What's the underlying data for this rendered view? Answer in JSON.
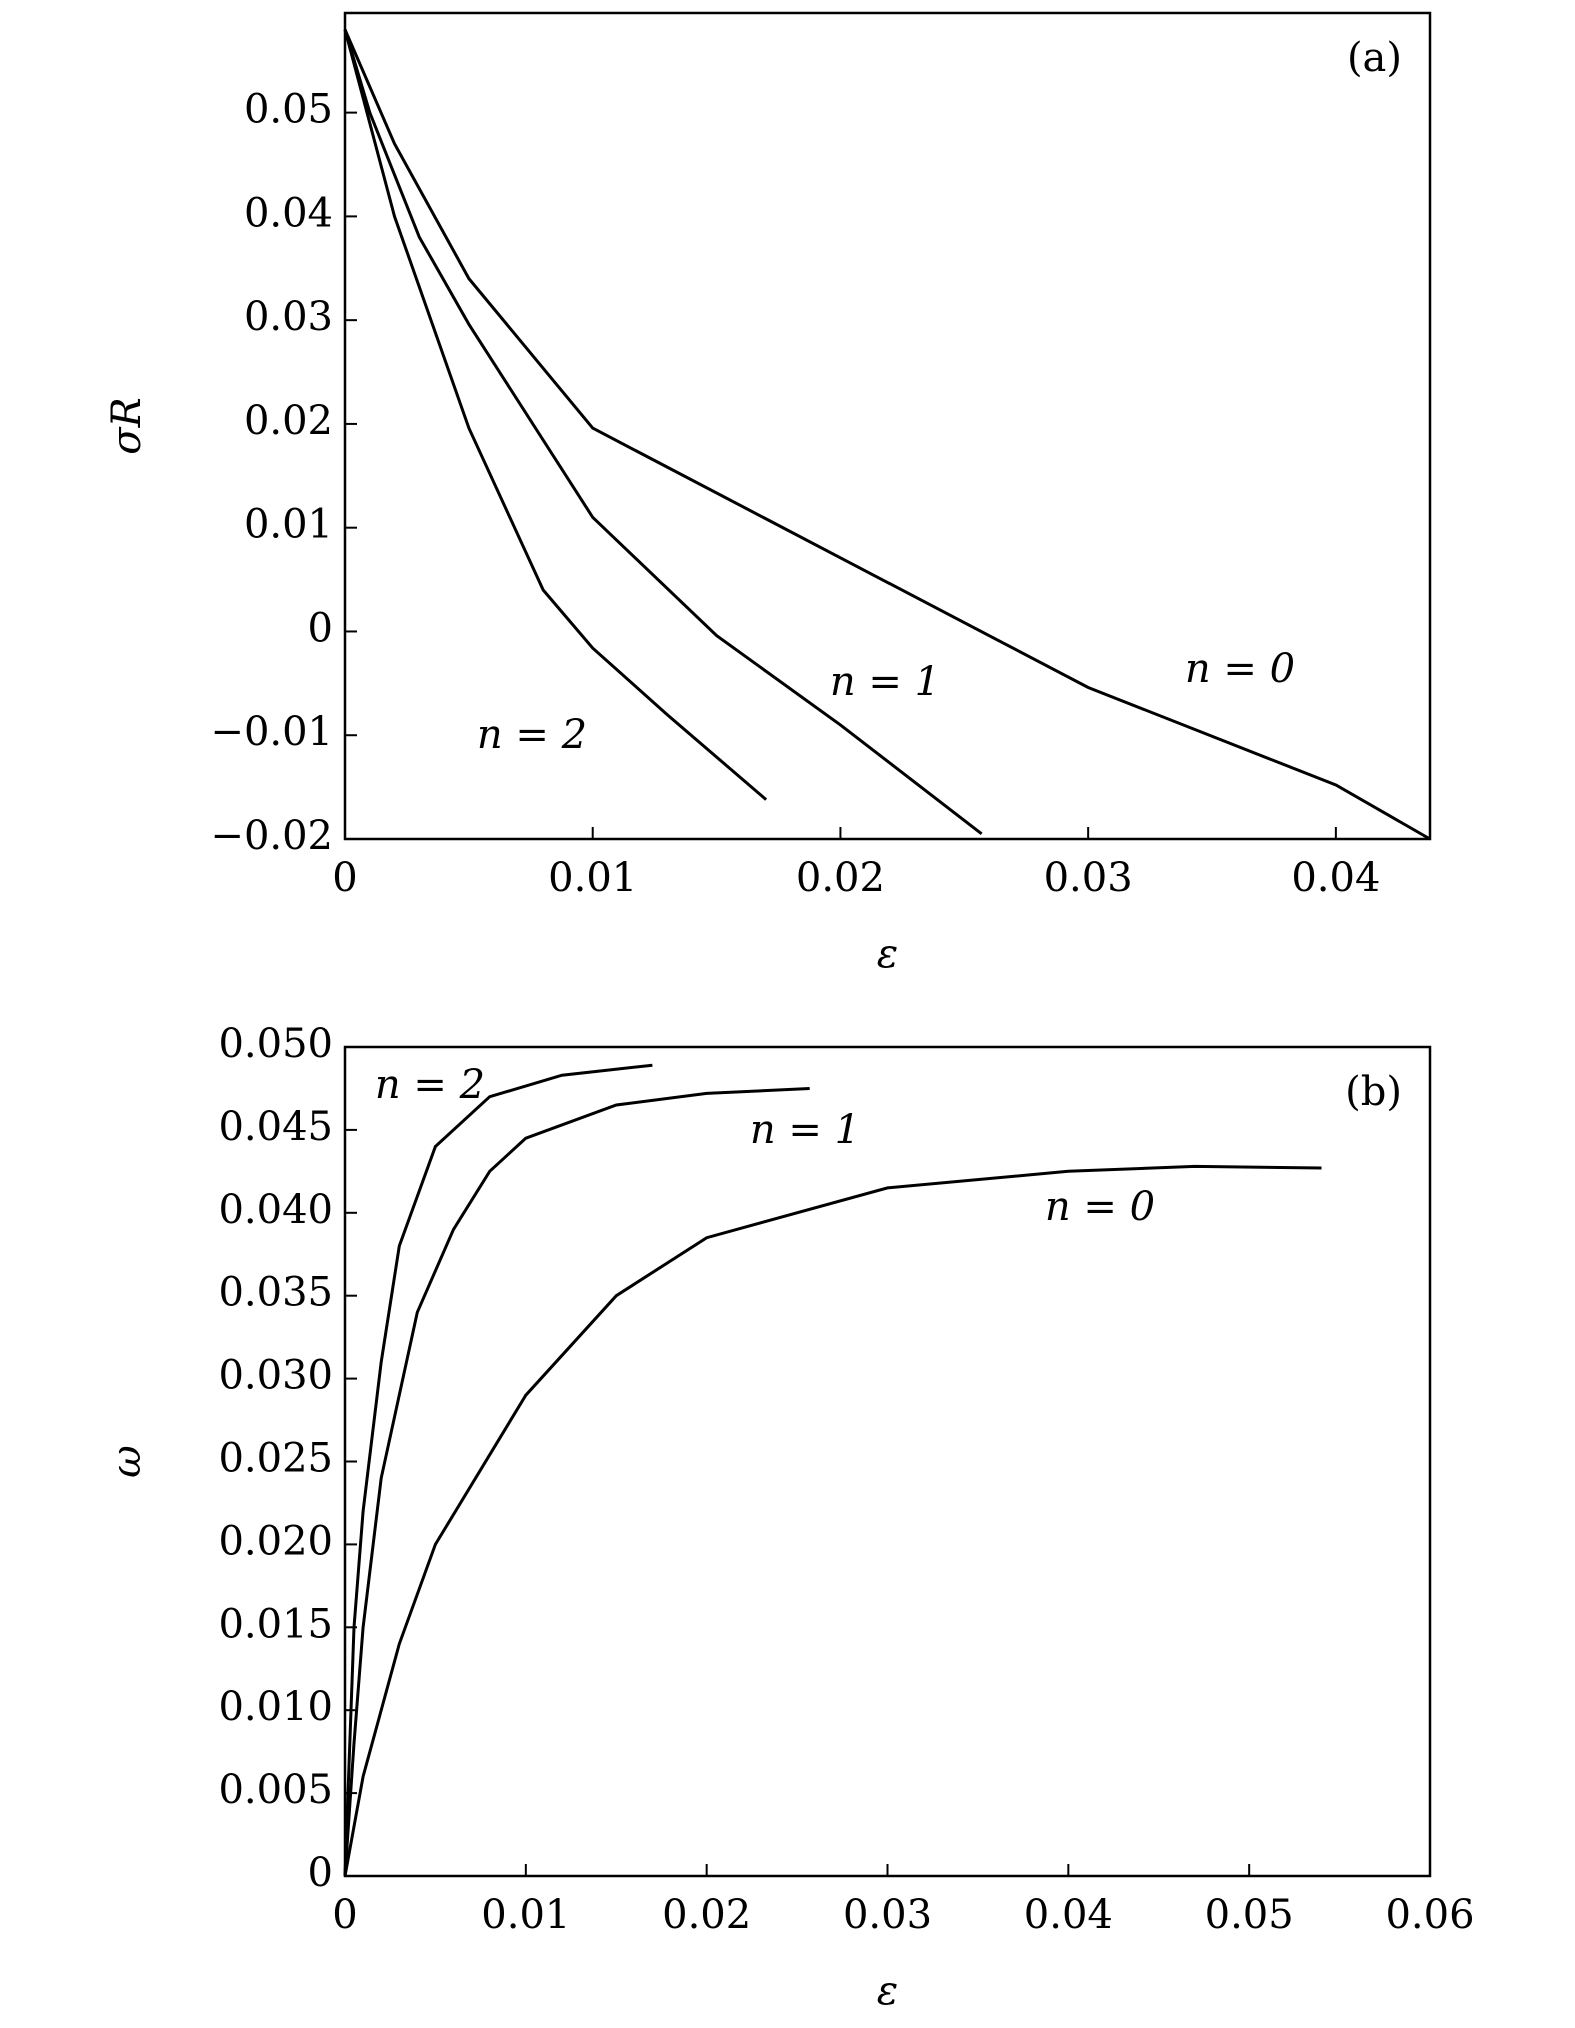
{
  "chart_data": [
    {
      "type": "line",
      "panel_label": "(a)",
      "x_label": "ε",
      "y_label": "σR",
      "xlim": [
        0,
        0.0438
      ],
      "ylim": [
        -0.02,
        0.0596
      ],
      "xticks": [
        0,
        0.01,
        0.02,
        0.03,
        0.04
      ],
      "yticks": [
        {
          "value": -0.02,
          "label": "−0.02"
        },
        {
          "value": -0.01,
          "label": "−0.01"
        },
        0,
        0.01,
        0.02,
        0.03,
        0.04,
        0.05
      ],
      "series": [
        {
          "name": "n = 0",
          "color": "#000000",
          "x": [
            0,
            0.002,
            0.005,
            0.01,
            0.02,
            0.03,
            0.04,
            0.0438
          ],
          "values": [
            0.058,
            0.047,
            0.034,
            0.0196,
            0.0071,
            -0.0054,
            -0.0148,
            -0.02
          ]
        },
        {
          "name": "n = 1",
          "color": "#000000",
          "x": [
            0,
            0.001,
            0.003,
            0.005,
            0.01,
            0.015,
            0.02,
            0.0257
          ],
          "values": [
            0.058,
            0.05,
            0.038,
            0.0296,
            0.011,
            -0.0004,
            -0.009,
            -0.0195
          ]
        },
        {
          "name": "n = 2",
          "color": "#000000",
          "x": [
            0,
            0.002,
            0.005,
            0.008,
            0.01,
            0.013,
            0.017
          ],
          "values": [
            0.058,
            0.04,
            0.0196,
            0.004,
            -0.0016,
            -0.008,
            -0.0162
          ]
        }
      ]
    },
    {
      "type": "line",
      "panel_label": "(b)",
      "x_label": "ε",
      "y_label": "ω",
      "xlim": [
        0,
        0.06
      ],
      "ylim": [
        0,
        0.05
      ],
      "xticks": [
        0,
        0.01,
        0.02,
        0.03,
        0.04,
        0.05,
        0.06
      ],
      "yticks": [
        0,
        0.005,
        {
          "value": 0.01,
          "label": "0.010"
        },
        0.015,
        {
          "value": 0.02,
          "label": "0.020"
        },
        0.025,
        {
          "value": 0.03,
          "label": "0.030"
        },
        0.035,
        {
          "value": 0.04,
          "label": "0.040"
        },
        0.045,
        {
          "value": 0.05,
          "label": "0.050"
        }
      ],
      "series": [
        {
          "name": "n = 2",
          "color": "#000000",
          "x": [
            0,
            0.0005,
            0.001,
            0.002,
            0.003,
            0.005,
            0.008,
            0.012,
            0.017
          ],
          "values": [
            0,
            0.015,
            0.022,
            0.031,
            0.038,
            0.044,
            0.047,
            0.0483,
            0.0489
          ]
        },
        {
          "name": "n = 1",
          "color": "#000000",
          "x": [
            0,
            0.0005,
            0.001,
            0.002,
            0.004,
            0.006,
            0.008,
            0.01,
            0.015,
            0.02,
            0.0257
          ],
          "values": [
            0,
            0.008,
            0.015,
            0.024,
            0.034,
            0.039,
            0.0425,
            0.0445,
            0.0465,
            0.0472,
            0.0475
          ]
        },
        {
          "name": "n = 0",
          "color": "#000000",
          "x": [
            0,
            0.001,
            0.003,
            0.005,
            0.01,
            0.015,
            0.02,
            0.03,
            0.04,
            0.047,
            0.054
          ],
          "values": [
            0,
            0.006,
            0.014,
            0.02,
            0.029,
            0.035,
            0.0385,
            0.0415,
            0.0425,
            0.0428,
            0.0427
          ]
        }
      ]
    }
  ]
}
